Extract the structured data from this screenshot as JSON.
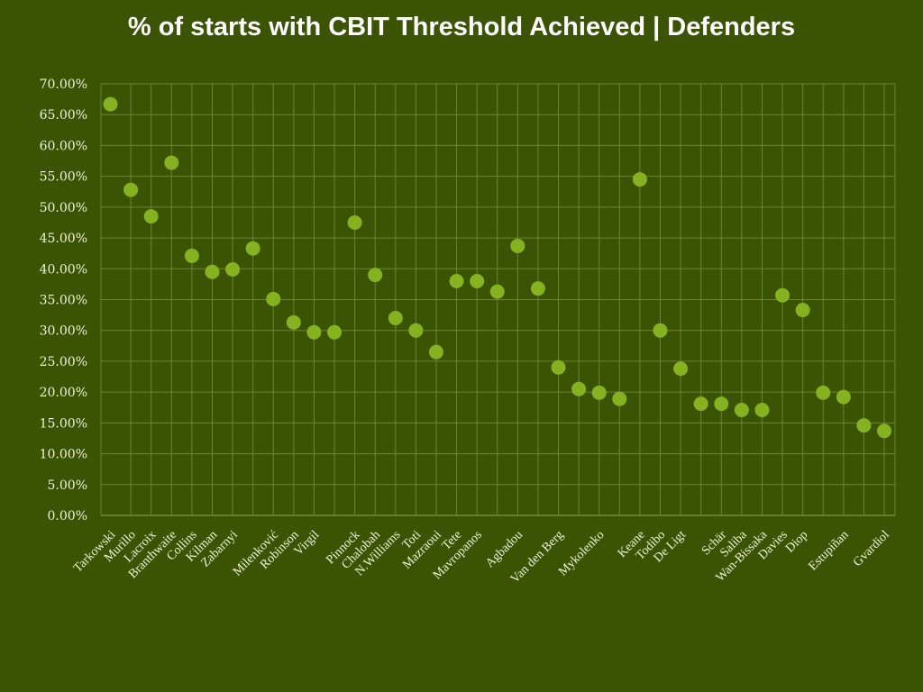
{
  "chart_data": {
    "type": "scatter",
    "title": "% of starts with CBIT Threshold Achieved | Defenders",
    "xlabel": "",
    "ylabel": "",
    "ylim": [
      0,
      70
    ],
    "yticks": [
      "0.00%",
      "5.00%",
      "10.00%",
      "15.00%",
      "20.00%",
      "25.00%",
      "30.00%",
      "35.00%",
      "40.00%",
      "45.00%",
      "50.00%",
      "55.00%",
      "60.00%",
      "65.00%",
      "70.00%"
    ],
    "grid": true,
    "categories": [
      "Tarkowski",
      "Murillo",
      "Lacroix",
      "Branthwaite",
      "Collins",
      "Kilman",
      "Zabarnyi",
      "",
      "Milenković",
      "Robinson",
      "Virgil",
      "",
      "Pinnock",
      "Chalobah",
      "N.Williams",
      "Toti",
      "Mazraoui",
      "Tete",
      "Mavropanos",
      "",
      "Agbadou",
      "",
      "Van den Berg",
      "",
      "Mykolenko",
      "",
      "Keane",
      "Todibo",
      "De Ligt",
      "",
      "Schär",
      "Saliba",
      "Wan-Bissaka",
      "Davies",
      "Diop",
      "",
      "Estupiñan",
      "",
      "Gvardiol"
    ],
    "values": [
      66.7,
      52.8,
      48.5,
      57.2,
      42.1,
      39.5,
      39.9,
      43.3,
      35.1,
      31.3,
      29.7,
      29.7,
      47.5,
      39.0,
      32.0,
      30.0,
      26.5,
      38.0,
      38.0,
      36.3,
      43.7,
      36.8,
      24.0,
      20.5,
      19.9,
      18.9,
      54.5,
      30.0,
      23.8,
      18.1,
      18.1,
      17.1,
      17.1,
      35.7,
      33.3,
      19.9,
      19.2,
      14.6,
      13.7
    ],
    "colors": {
      "background": "#3a5403",
      "marker": "#86b21f",
      "grid": "#6c8436",
      "text": "#eef3d6"
    }
  }
}
